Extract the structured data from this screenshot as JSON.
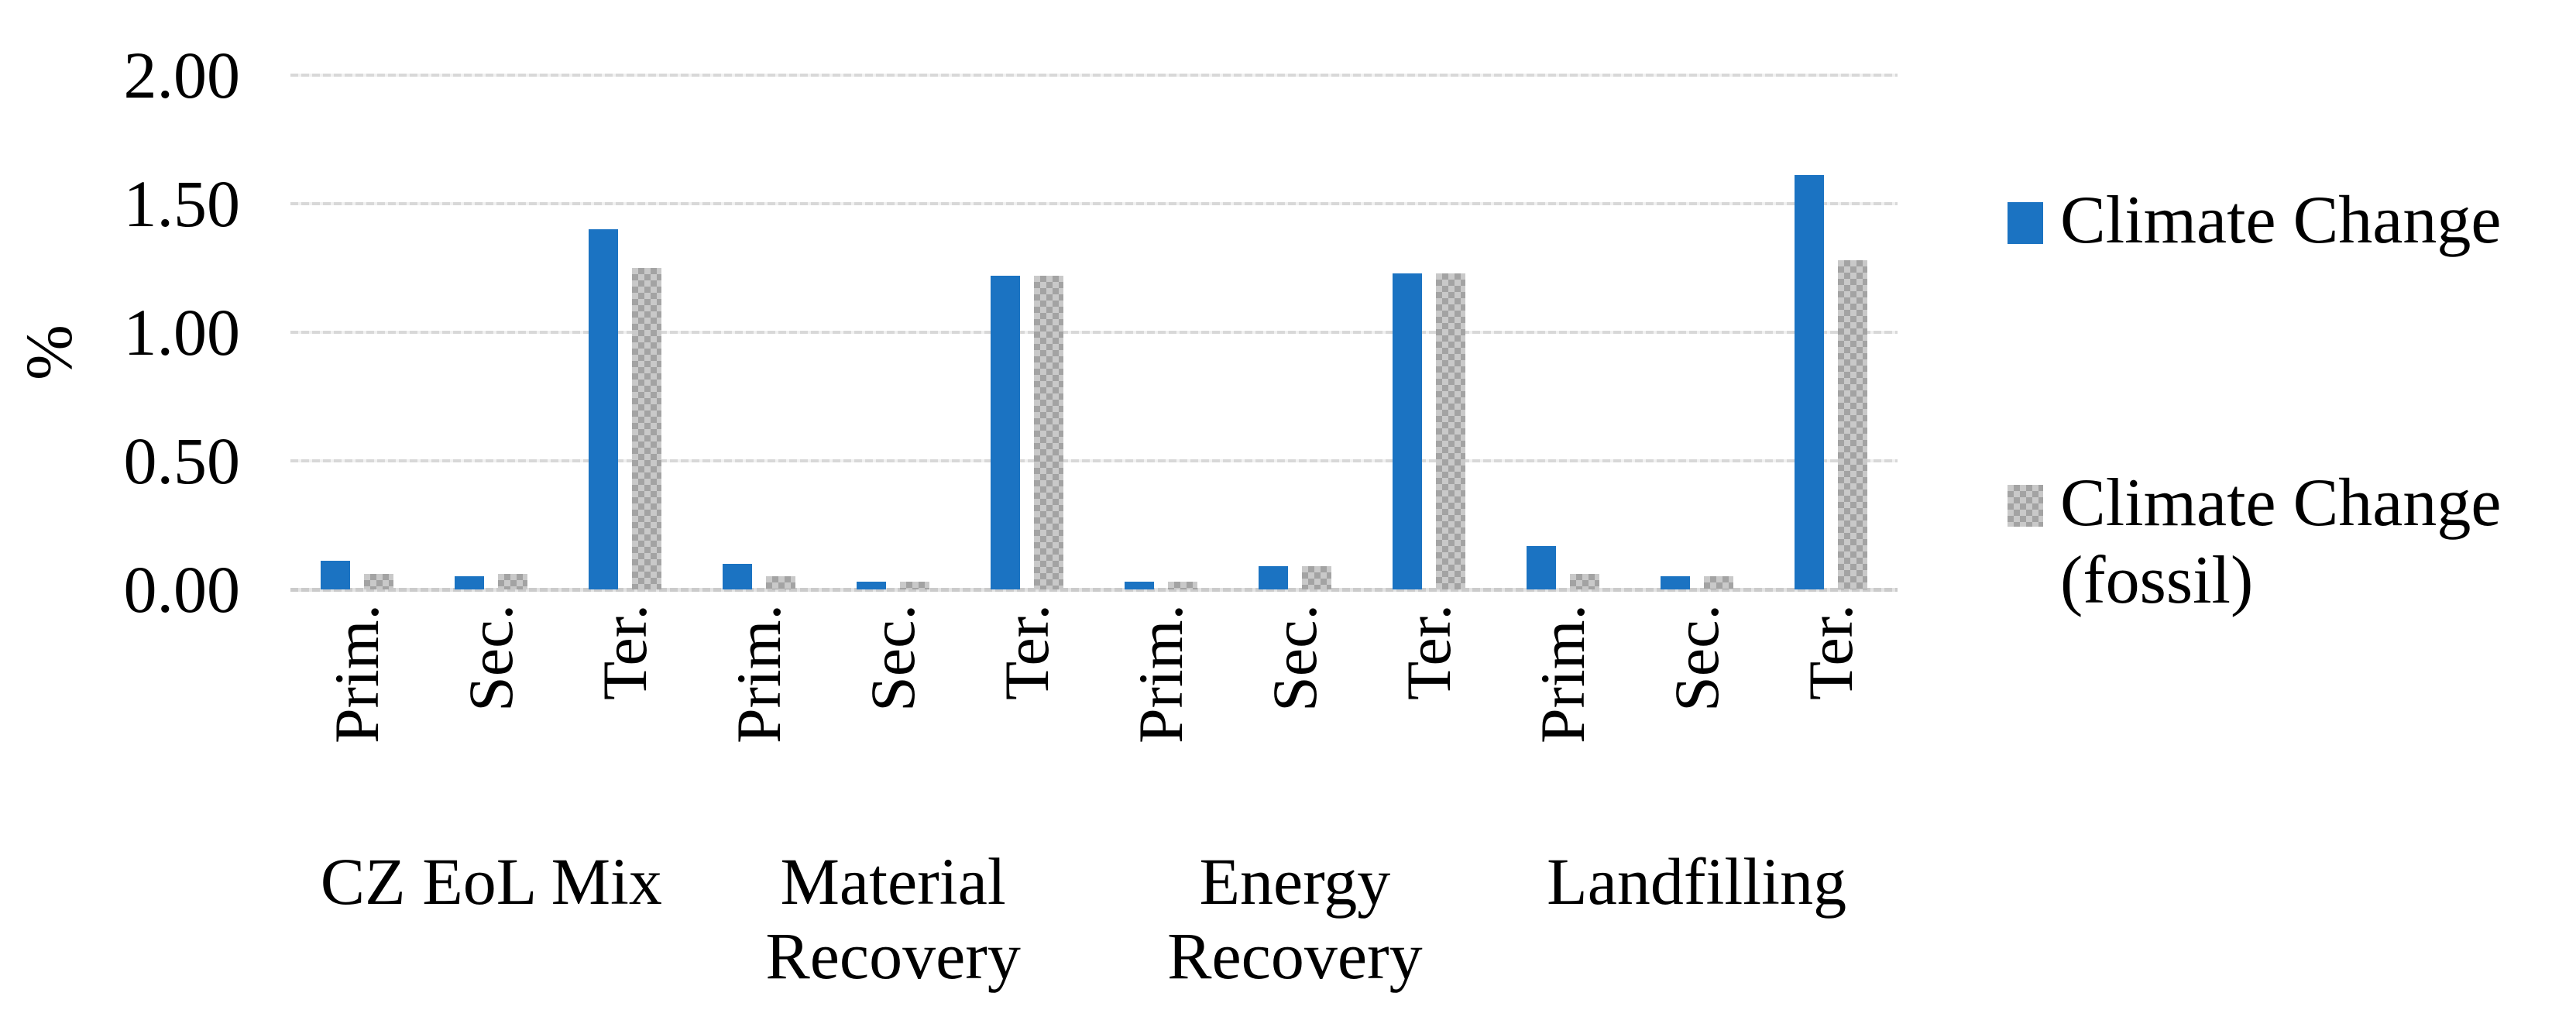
{
  "colors": {
    "series_blue": "#1b73c2",
    "series_gray": "#adadad",
    "gridline": "#d8d8d8",
    "axis_line": "#cbcbcb",
    "text": "#000000",
    "background": "#ffffff"
  },
  "chart_data": {
    "type": "bar",
    "title": "",
    "xlabel": "",
    "ylabel": "%",
    "ylim": [
      0,
      2
    ],
    "ytick_labels": [
      "0.00",
      "0.50",
      "1.00",
      "1.50",
      "2.00"
    ],
    "grid": true,
    "legend_position": "right",
    "groups": [
      {
        "label": "CZ EoL Mix",
        "label_lines": [
          "CZ EoL Mix"
        ]
      },
      {
        "label": "Material Recovery",
        "label_lines": [
          "Material",
          "Recovery"
        ]
      },
      {
        "label": "Energy Recovery",
        "label_lines": [
          "Energy",
          "Recovery"
        ]
      },
      {
        "label": "Landfilling",
        "label_lines": [
          "Landfilling"
        ]
      }
    ],
    "subcategories": [
      "Prim.",
      "Sec.",
      "Ter."
    ],
    "series": [
      {
        "name": "Climate Change",
        "color": "#1b73c2",
        "fill": "solid",
        "values": [
          0.11,
          0.05,
          1.4,
          0.1,
          0.03,
          1.22,
          0.03,
          0.09,
          1.23,
          0.17,
          0.05,
          1.61
        ]
      },
      {
        "name": "Climate Change (fossil)",
        "color": "#adadad",
        "fill": "checker",
        "values": [
          0.06,
          0.06,
          1.25,
          0.05,
          0.03,
          1.22,
          0.03,
          0.09,
          1.23,
          0.06,
          0.05,
          1.28
        ]
      }
    ],
    "legend": [
      {
        "line1": "Climate Change",
        "line2": ""
      },
      {
        "line1": "Climate Change",
        "line2": "(fossil)"
      }
    ]
  }
}
